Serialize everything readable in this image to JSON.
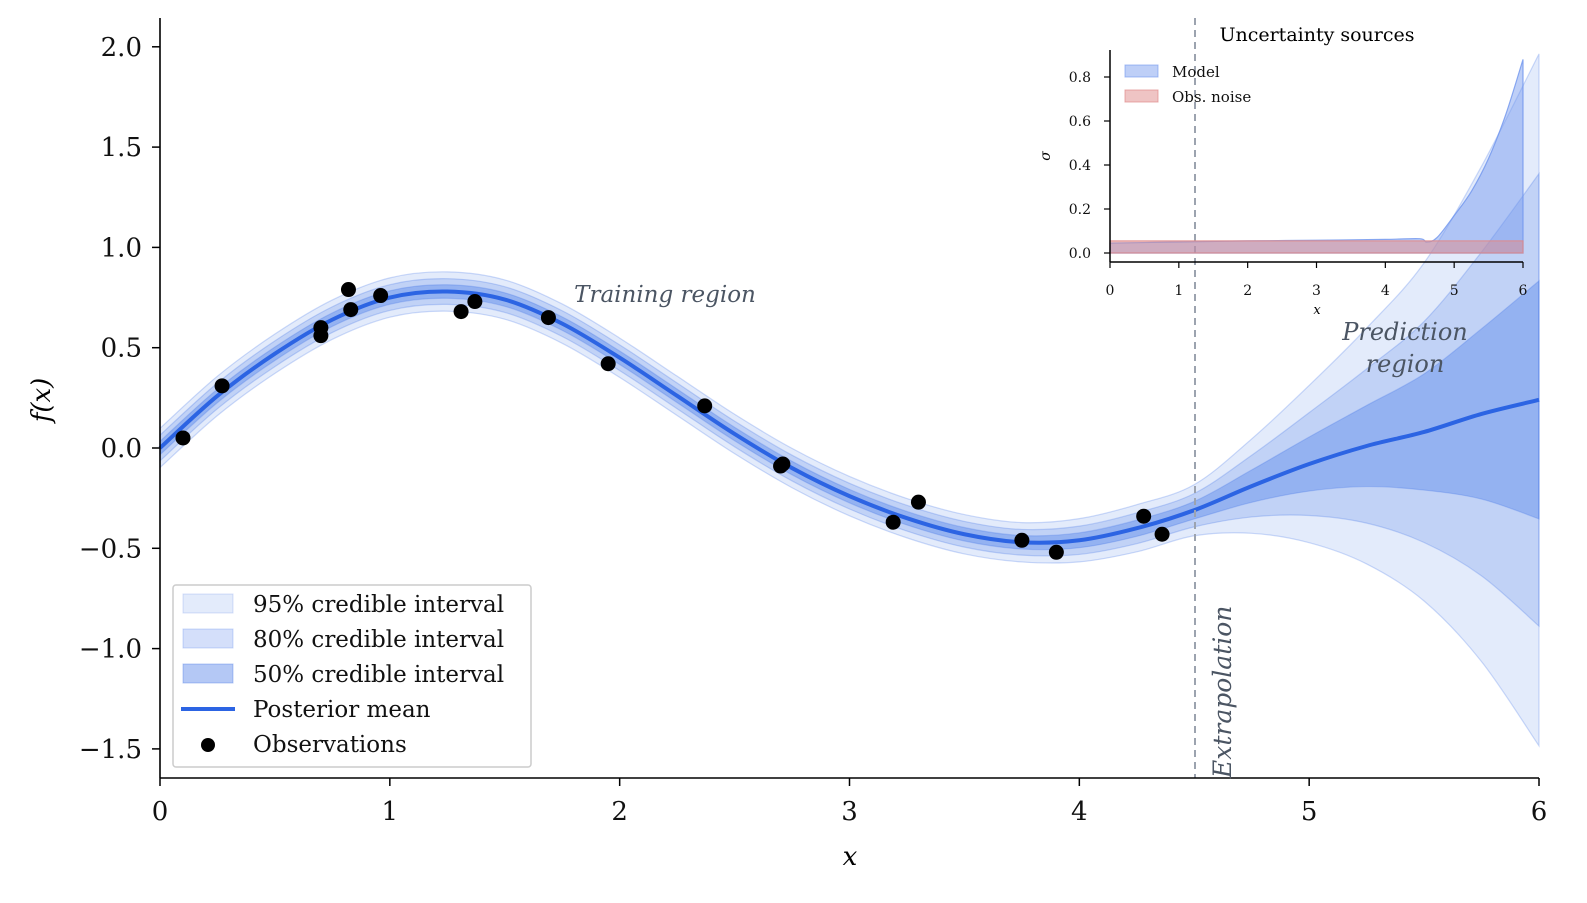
{
  "chart_data": [
    {
      "type": "line",
      "xlabel": "x",
      "ylabel": "f(x)",
      "xlim": [
        0,
        6
      ],
      "ylim": [
        -1.65,
        2.15
      ],
      "xticks": [
        "0",
        "1",
        "2",
        "3",
        "4",
        "5",
        "6"
      ],
      "yticks": [
        "−1.5",
        "−1.0",
        "−0.5",
        "0.0",
        "0.5",
        "1.0",
        "1.5",
        "2.0"
      ],
      "ytick_values": [
        -1.5,
        -1.0,
        -0.5,
        0.0,
        0.5,
        1.0,
        1.5,
        2.0
      ],
      "grid": false,
      "legend_position": "bottom-left",
      "posterior": {
        "x": [
          0,
          0.25,
          0.5,
          0.75,
          1,
          1.25,
          1.5,
          1.75,
          2,
          2.25,
          2.5,
          2.75,
          3,
          3.25,
          3.5,
          3.75,
          4,
          4.25,
          4.5,
          4.75,
          5,
          5.25,
          5.5,
          5.75,
          6
        ],
        "mean": [
          0.0,
          0.26,
          0.47,
          0.64,
          0.75,
          0.78,
          0.74,
          0.62,
          0.45,
          0.26,
          0.07,
          -0.1,
          -0.24,
          -0.35,
          -0.43,
          -0.47,
          -0.46,
          -0.4,
          -0.31,
          -0.19,
          -0.08,
          0.01,
          0.08,
          0.17,
          0.24
        ],
        "sigma": [
          0.05,
          0.05,
          0.05,
          0.05,
          0.05,
          0.05,
          0.05,
          0.05,
          0.05,
          0.05,
          0.05,
          0.05,
          0.05,
          0.05,
          0.05,
          0.05,
          0.055,
          0.06,
          0.065,
          0.12,
          0.2,
          0.3,
          0.43,
          0.63,
          0.88
        ]
      },
      "intervals": [
        {
          "name": "95% credible interval",
          "z": 1.96,
          "opacity": 0.14
        },
        {
          "name": "80% credible interval",
          "z": 1.2816,
          "opacity": 0.2
        },
        {
          "name": "50% credible interval",
          "z": 0.674,
          "opacity": 0.33
        }
      ],
      "mean_series_name": "Posterior mean",
      "observations_name": "Observations",
      "observations": {
        "x": [
          0.1,
          0.27,
          0.7,
          0.7,
          0.82,
          0.83,
          0.96,
          1.31,
          1.37,
          1.69,
          1.95,
          2.37,
          2.7,
          2.71,
          3.19,
          3.3,
          3.75,
          3.9,
          4.28,
          4.36
        ],
        "y": [
          0.05,
          0.31,
          0.6,
          0.56,
          0.79,
          0.69,
          0.76,
          0.68,
          0.73,
          0.65,
          0.42,
          0.21,
          -0.09,
          -0.08,
          -0.37,
          -0.27,
          -0.46,
          -0.52,
          -0.34,
          -0.43
        ]
      },
      "boundary_x": 4.5,
      "annotations": {
        "training": "Training region",
        "prediction_line1": "Prediction",
        "prediction_line2": "region",
        "extrapolation": "Extrapolation"
      },
      "colors": {
        "band": "#3b6fe6",
        "mean": "#2c64e3",
        "points": "#000000",
        "boundary": "#9ca3af"
      }
    },
    {
      "type": "area",
      "title": "Uncertainty sources",
      "xlabel": "x",
      "ylabel": "σ",
      "xlim": [
        0,
        6
      ],
      "ylim": [
        -0.04,
        0.92
      ],
      "xticks": [
        "0",
        "1",
        "2",
        "3",
        "4",
        "5",
        "6"
      ],
      "yticks": [
        "0.0",
        "0.2",
        "0.4",
        "0.6",
        "0.8"
      ],
      "ytick_values": [
        0,
        0.2,
        0.4,
        0.6,
        0.8
      ],
      "legend_position": "top-left",
      "series": [
        {
          "name": "Model",
          "color": "#6f95ee",
          "x": [
            0,
            1,
            2,
            3,
            4,
            4.5,
            4.6,
            4.75,
            5,
            5.25,
            5.5,
            5.75,
            6
          ],
          "values": [
            0.045,
            0.05,
            0.055,
            0.058,
            0.062,
            0.065,
            0.05,
            0.07,
            0.17,
            0.28,
            0.43,
            0.63,
            0.88
          ]
        },
        {
          "name": "Obs. noise",
          "color": "#e08a8a",
          "x": [
            0,
            6
          ],
          "values": [
            0.055,
            0.055
          ]
        }
      ]
    }
  ]
}
